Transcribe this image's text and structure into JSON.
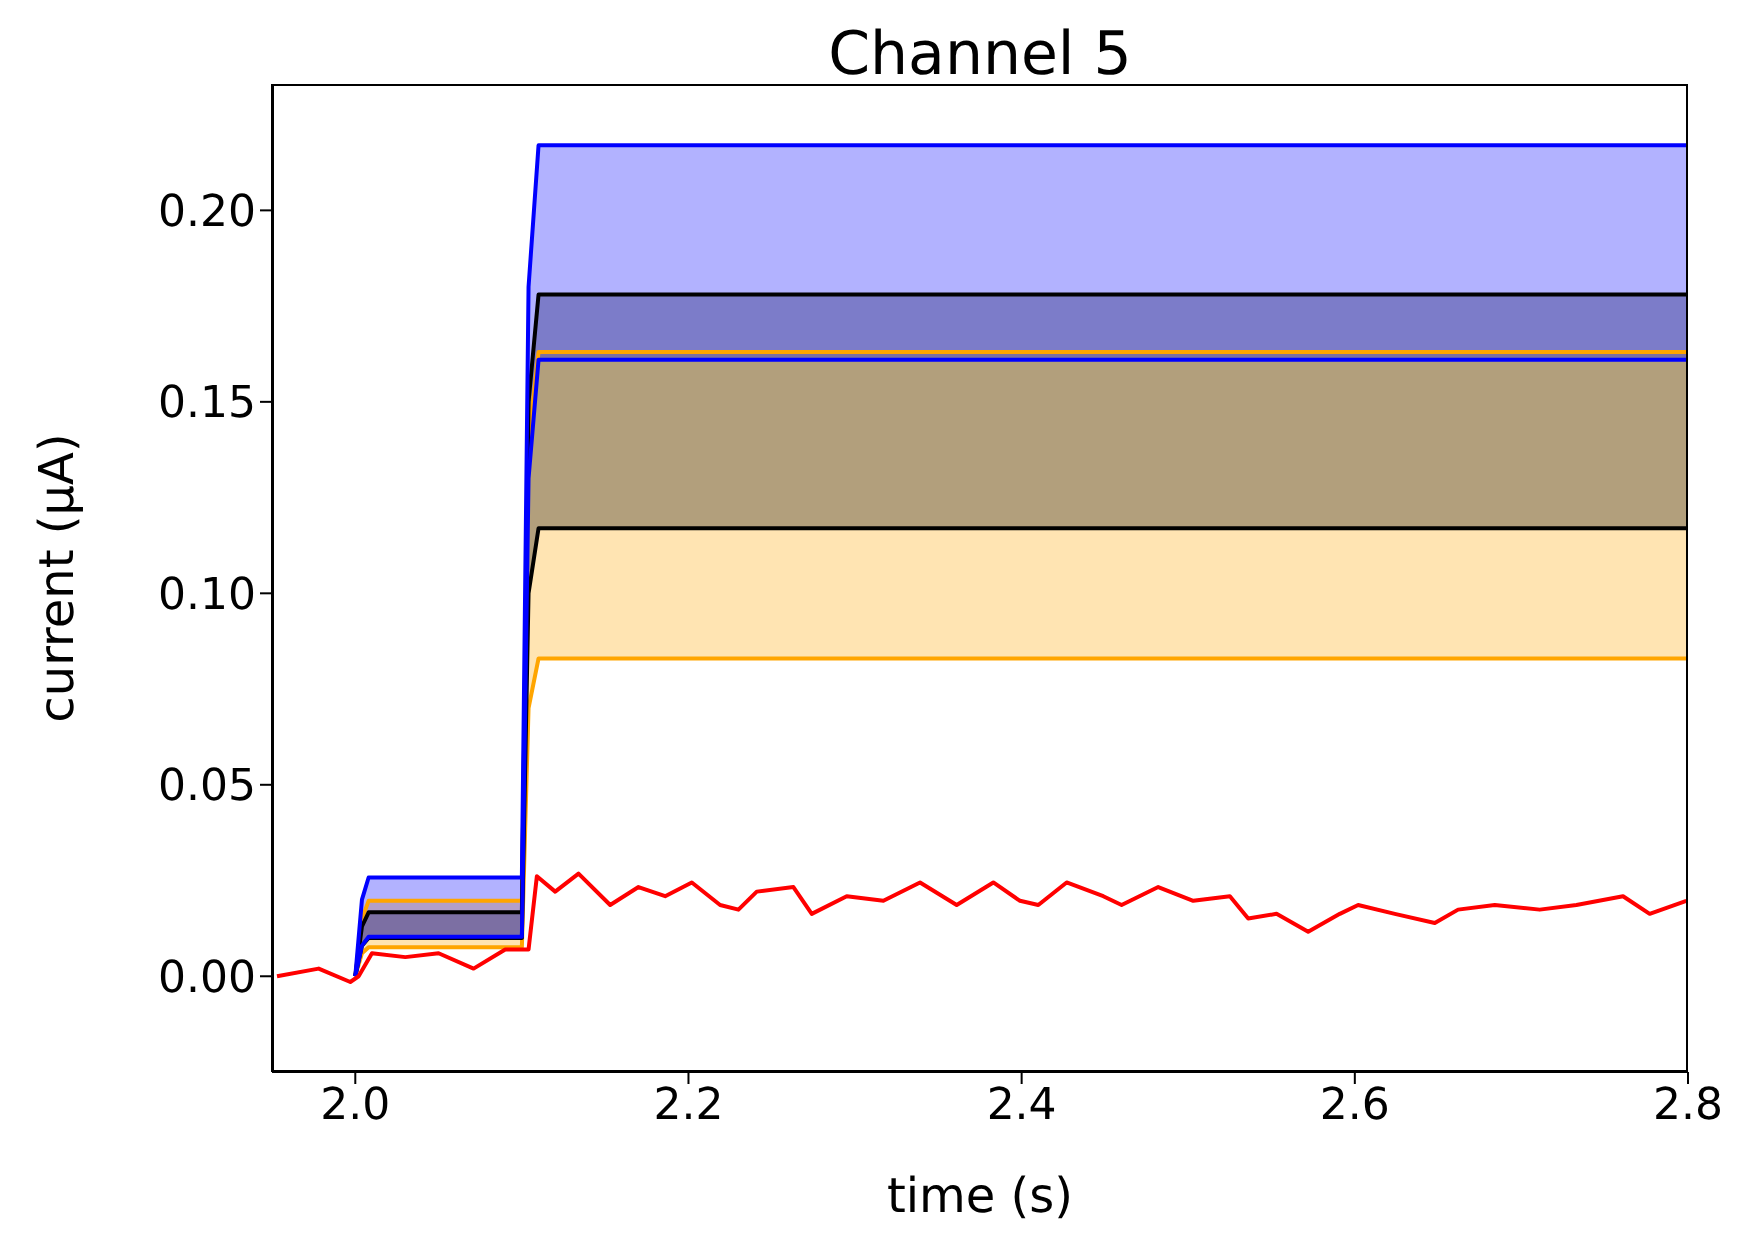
{
  "chart_data": {
    "type": "line",
    "title": "Channel 5",
    "xlabel": "time (s)",
    "ylabel": "current (μA)",
    "xlim": [
      1.95,
      2.8
    ],
    "xticks": [
      {
        "value": 2.0,
        "label": "2.0"
      },
      {
        "value": 2.2,
        "label": "2.2"
      },
      {
        "value": 2.4,
        "label": "2.4"
      },
      {
        "value": 2.6,
        "label": "2.6"
      },
      {
        "value": 2.8,
        "label": "2.8"
      }
    ],
    "ylim": [
      -0.025,
      0.233
    ],
    "yticks": [
      {
        "value": 0,
        "label": "0.00"
      },
      {
        "value": 0.05,
        "label": "0.05"
      },
      {
        "value": 0.1,
        "label": "0.10"
      },
      {
        "value": 0.15,
        "label": "0.15"
      },
      {
        "value": 0.2,
        "label": "0.20"
      }
    ],
    "grid": false,
    "legend": false,
    "series": [
      {
        "color": "#ffa500",
        "x": [
          2.0,
          2.004,
          2.008,
          2.1,
          2.104,
          2.11,
          2.8
        ],
        "values": [
          0,
          0.006,
          0.0076,
          0.0076,
          0.07,
          0.083,
          0.083
        ]
      },
      {
        "color": "#ffa500",
        "x": [
          2.0,
          2.004,
          2.008,
          2.1,
          2.104,
          2.11,
          2.8
        ],
        "values": [
          0,
          0.015,
          0.0197,
          0.0197,
          0.14,
          0.163,
          0.163
        ],
        "lower": [
          0,
          0.006,
          0.0076,
          0.0076,
          0.07,
          0.083,
          0.083
        ],
        "upper": [
          0,
          0.015,
          0.0197,
          0.0197,
          0.14,
          0.163,
          0.163
        ]
      },
      {
        "color": "#000000",
        "x": [
          2.0,
          2.004,
          2.008,
          2.1,
          2.104,
          2.11,
          2.8
        ],
        "values": [
          0,
          0.008,
          0.01,
          0.01,
          0.1,
          0.117,
          0.117
        ]
      },
      {
        "color": "#000000",
        "x": [
          2.0,
          2.004,
          2.008,
          2.1,
          2.104,
          2.11,
          2.8
        ],
        "values": [
          0,
          0.013,
          0.0167,
          0.0167,
          0.15,
          0.178,
          0.178
        ],
        "lower": [
          0,
          0.008,
          0.01,
          0.01,
          0.1,
          0.117,
          0.117
        ],
        "upper": [
          0,
          0.013,
          0.0167,
          0.0167,
          0.15,
          0.178,
          0.178
        ]
      },
      {
        "color": "#0000ff",
        "x": [
          2.0,
          2.004,
          2.008,
          2.1,
          2.104,
          2.11,
          2.8
        ],
        "values": [
          0,
          0.008,
          0.0103,
          0.0103,
          0.13,
          0.161,
          0.161
        ]
      },
      {
        "color": "#0000ff",
        "x": [
          2.0,
          2.004,
          2.008,
          2.1,
          2.104,
          2.11,
          2.8
        ],
        "values": [
          0,
          0.02,
          0.0258,
          0.0258,
          0.18,
          0.217,
          0.217
        ],
        "lower": [
          0,
          0.008,
          0.0103,
          0.0103,
          0.13,
          0.161,
          0.161
        ],
        "upper": [
          0,
          0.02,
          0.0258,
          0.0258,
          0.18,
          0.217,
          0.217
        ]
      },
      {
        "color": "#ff0000",
        "x": [
          1.953,
          1.978,
          1.997,
          2.002,
          2.01,
          2.03,
          2.05,
          2.071,
          2.09,
          2.104,
          2.109,
          2.12,
          2.134,
          2.153,
          2.17,
          2.186,
          2.202,
          2.219,
          2.23,
          2.241,
          2.263,
          2.274,
          2.295,
          2.317,
          2.339,
          2.361,
          2.383,
          2.399,
          2.41,
          2.427,
          2.449,
          2.46,
          2.482,
          2.503,
          2.525,
          2.536,
          2.553,
          2.572,
          2.591,
          2.602,
          2.624,
          2.648,
          2.662,
          2.684,
          2.711,
          2.733,
          2.761,
          2.777,
          2.799
        ],
        "values": [
          0,
          0.002,
          -0.0015,
          0,
          0.006,
          0.005,
          0.006,
          0.002,
          0.007,
          0.007,
          0.0261,
          0.0221,
          0.0268,
          0.0186,
          0.0233,
          0.0209,
          0.0245,
          0.0186,
          0.0174,
          0.0221,
          0.0233,
          0.0163,
          0.0209,
          0.0197,
          0.0245,
          0.0186,
          0.0245,
          0.0197,
          0.0186,
          0.0245,
          0.0209,
          0.0186,
          0.0233,
          0.0197,
          0.0209,
          0.0151,
          0.0163,
          0.0116,
          0.0163,
          0.0186,
          0.0163,
          0.0139,
          0.0174,
          0.0186,
          0.0174,
          0.0186,
          0.0209,
          0.0163,
          0.0197
        ]
      }
    ]
  }
}
